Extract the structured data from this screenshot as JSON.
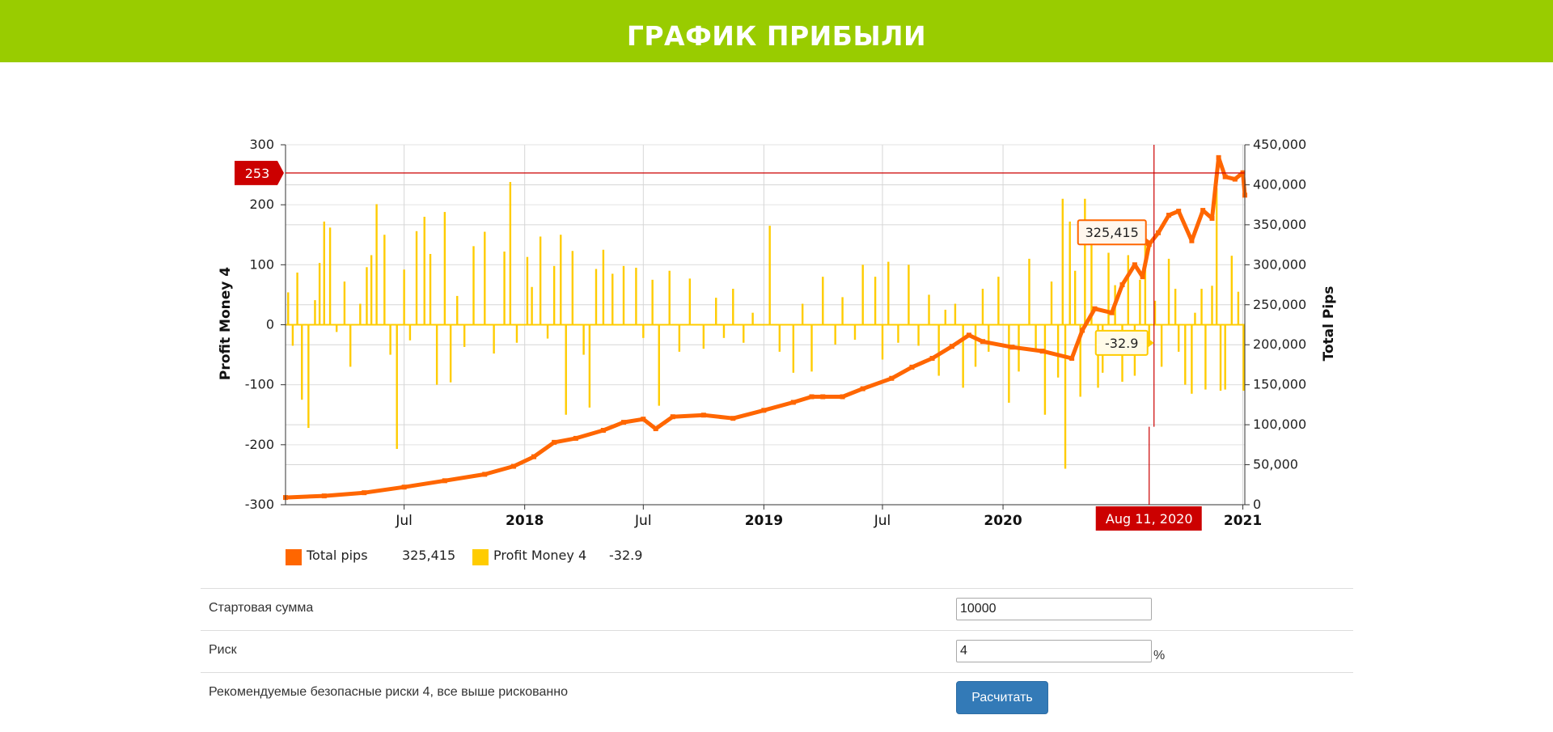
{
  "page": {
    "title": "ГРАФИК ПРИБЫЛИ"
  },
  "colors": {
    "banner": "#99cc00",
    "total_pips": "#ff6600",
    "profit": "#ffcc00",
    "crosshair": "#cc0000",
    "button": "#337ab7"
  },
  "chart_data": {
    "type": "bar+line",
    "y_left": {
      "label": "Profit Money 4",
      "range": [
        -300,
        300
      ],
      "ticks": [
        -300,
        -200,
        -100,
        0,
        100,
        200,
        300
      ]
    },
    "y_right": {
      "label": "Total Pips",
      "range": [
        0,
        450000
      ],
      "ticks": [
        "0",
        "50,000",
        "100,000",
        "150,000",
        "200,000",
        "250,000",
        "300,000",
        "350,000",
        "400,000",
        "450,000"
      ]
    },
    "x_axis": {
      "range": [
        "2017-01-01",
        "2021-01-04"
      ],
      "ticks": [
        {
          "date": "2017-07-01",
          "label": "Jul",
          "bold": false
        },
        {
          "date": "2018-01-01",
          "label": "2018",
          "bold": true
        },
        {
          "date": "2018-07-01",
          "label": "Jul",
          "bold": false
        },
        {
          "date": "2019-01-01",
          "label": "2019",
          "bold": true
        },
        {
          "date": "2019-07-01",
          "label": "Jul",
          "bold": false
        },
        {
          "date": "2020-01-01",
          "label": "2020",
          "bold": true
        },
        {
          "date": "2021-01-01",
          "label": "2021",
          "bold": true
        }
      ]
    },
    "crosshair": {
      "x_label": "Aug 11, 2020",
      "y_label": "253",
      "y_value": 253,
      "date": "2020-08-11"
    },
    "tooltips": {
      "total_pips": "325,415",
      "profit": "-32.9"
    },
    "series": [
      {
        "name": "Total pips",
        "type": "line",
        "axis": "right",
        "points": [
          [
            "2017-01-01",
            9000
          ],
          [
            "2017-03-01",
            11000
          ],
          [
            "2017-05-01",
            15000
          ],
          [
            "2017-07-01",
            22000
          ],
          [
            "2017-09-01",
            30000
          ],
          [
            "2017-11-01",
            38000
          ],
          [
            "2017-12-15",
            48000
          ],
          [
            "2018-01-15",
            60000
          ],
          [
            "2018-02-15",
            78000
          ],
          [
            "2018-03-20",
            83000
          ],
          [
            "2018-05-01",
            93000
          ],
          [
            "2018-06-01",
            103000
          ],
          [
            "2018-07-01",
            107000
          ],
          [
            "2018-07-20",
            95000
          ],
          [
            "2018-08-15",
            110000
          ],
          [
            "2018-10-01",
            112000
          ],
          [
            "2018-11-15",
            108000
          ],
          [
            "2019-01-01",
            118000
          ],
          [
            "2019-02-15",
            128000
          ],
          [
            "2019-03-15",
            135000
          ],
          [
            "2019-04-01",
            135000
          ],
          [
            "2019-05-01",
            135000
          ],
          [
            "2019-06-01",
            145000
          ],
          [
            "2019-07-15",
            158000
          ],
          [
            "2019-08-15",
            172000
          ],
          [
            "2019-09-15",
            183000
          ],
          [
            "2019-10-15",
            198000
          ],
          [
            "2019-11-10",
            212000
          ],
          [
            "2019-12-01",
            204000
          ],
          [
            "2020-01-15",
            197000
          ],
          [
            "2020-03-01",
            192000
          ],
          [
            "2020-04-15",
            183000
          ],
          [
            "2020-05-01",
            218000
          ],
          [
            "2020-05-20",
            245000
          ],
          [
            "2020-06-15",
            240000
          ],
          [
            "2020-07-01",
            275000
          ],
          [
            "2020-07-20",
            300000
          ],
          [
            "2020-08-01",
            285000
          ],
          [
            "2020-08-11",
            325415
          ],
          [
            "2020-08-25",
            340000
          ],
          [
            "2020-09-10",
            362000
          ],
          [
            "2020-09-25",
            367000
          ],
          [
            "2020-10-15",
            330000
          ],
          [
            "2020-11-01",
            368000
          ],
          [
            "2020-11-15",
            358000
          ],
          [
            "2020-11-25",
            434000
          ],
          [
            "2020-12-05",
            410000
          ],
          [
            "2020-12-20",
            407000
          ],
          [
            "2021-01-01",
            415000
          ],
          [
            "2021-01-04",
            387000
          ]
        ]
      },
      {
        "name": "Profit Money 4",
        "type": "bar",
        "axis": "left",
        "points": [
          [
            "2017-01-05",
            54
          ],
          [
            "2017-01-12",
            -35
          ],
          [
            "2017-01-19",
            87
          ],
          [
            "2017-01-26",
            -125
          ],
          [
            "2017-02-05",
            -172
          ],
          [
            "2017-02-15",
            41
          ],
          [
            "2017-02-22",
            103
          ],
          [
            "2017-03-01",
            172
          ],
          [
            "2017-03-10",
            162
          ],
          [
            "2017-03-20",
            -12
          ],
          [
            "2017-04-01",
            72
          ],
          [
            "2017-04-10",
            -70
          ],
          [
            "2017-04-25",
            35
          ],
          [
            "2017-05-05",
            96
          ],
          [
            "2017-05-12",
            116
          ],
          [
            "2017-05-20",
            201
          ],
          [
            "2017-06-01",
            150
          ],
          [
            "2017-06-10",
            -50
          ],
          [
            "2017-06-20",
            -207
          ],
          [
            "2017-07-01",
            92
          ],
          [
            "2017-07-10",
            -26
          ],
          [
            "2017-07-20",
            156
          ],
          [
            "2017-08-01",
            180
          ],
          [
            "2017-08-10",
            118
          ],
          [
            "2017-08-20",
            -100
          ],
          [
            "2017-09-01",
            188
          ],
          [
            "2017-09-10",
            -96
          ],
          [
            "2017-09-20",
            48
          ],
          [
            "2017-10-01",
            -37
          ],
          [
            "2017-10-15",
            131
          ],
          [
            "2017-11-01",
            155
          ],
          [
            "2017-11-15",
            -48
          ],
          [
            "2017-12-01",
            122
          ],
          [
            "2017-12-10",
            238
          ],
          [
            "2017-12-20",
            -30
          ],
          [
            "2018-01-05",
            113
          ],
          [
            "2018-01-12",
            63
          ],
          [
            "2018-01-25",
            147
          ],
          [
            "2018-02-05",
            -23
          ],
          [
            "2018-02-15",
            98
          ],
          [
            "2018-02-25",
            150
          ],
          [
            "2018-03-05",
            -150
          ],
          [
            "2018-03-15",
            123
          ],
          [
            "2018-04-01",
            -50
          ],
          [
            "2018-04-10",
            -138
          ],
          [
            "2018-04-20",
            93
          ],
          [
            "2018-05-01",
            125
          ],
          [
            "2018-05-15",
            85
          ],
          [
            "2018-06-01",
            98
          ],
          [
            "2018-06-20",
            95
          ],
          [
            "2018-07-01",
            -22
          ],
          [
            "2018-07-15",
            75
          ],
          [
            "2018-07-25",
            -135
          ],
          [
            "2018-08-10",
            90
          ],
          [
            "2018-08-25",
            -45
          ],
          [
            "2018-09-10",
            77
          ],
          [
            "2018-10-01",
            -40
          ],
          [
            "2018-10-20",
            45
          ],
          [
            "2018-11-01",
            -22
          ],
          [
            "2018-11-15",
            60
          ],
          [
            "2018-12-01",
            -30
          ],
          [
            "2018-12-15",
            20
          ],
          [
            "2019-01-10",
            165
          ],
          [
            "2019-01-25",
            -45
          ],
          [
            "2019-02-15",
            -80
          ],
          [
            "2019-03-01",
            35
          ],
          [
            "2019-03-15",
            -78
          ],
          [
            "2019-04-01",
            80
          ],
          [
            "2019-04-20",
            -33
          ],
          [
            "2019-05-01",
            46
          ],
          [
            "2019-05-20",
            -25
          ],
          [
            "2019-06-01",
            100
          ],
          [
            "2019-06-20",
            80
          ],
          [
            "2019-07-01",
            -58
          ],
          [
            "2019-07-10",
            105
          ],
          [
            "2019-07-25",
            -30
          ],
          [
            "2019-08-10",
            100
          ],
          [
            "2019-08-25",
            -35
          ],
          [
            "2019-09-10",
            50
          ],
          [
            "2019-09-25",
            -85
          ],
          [
            "2019-10-05",
            25
          ],
          [
            "2019-10-20",
            35
          ],
          [
            "2019-11-01",
            -105
          ],
          [
            "2019-11-20",
            -70
          ],
          [
            "2019-12-01",
            60
          ],
          [
            "2019-12-10",
            -45
          ],
          [
            "2019-12-25",
            80
          ],
          [
            "2020-01-10",
            -130
          ],
          [
            "2020-01-25",
            -78
          ],
          [
            "2020-02-10",
            110
          ],
          [
            "2020-02-20",
            -45
          ],
          [
            "2020-03-05",
            -150
          ],
          [
            "2020-03-15",
            72
          ],
          [
            "2020-03-25",
            -88
          ],
          [
            "2020-04-01",
            210
          ],
          [
            "2020-04-05",
            -240
          ],
          [
            "2020-04-12",
            172
          ],
          [
            "2020-04-20",
            90
          ],
          [
            "2020-04-28",
            -120
          ],
          [
            "2020-05-05",
            210
          ],
          [
            "2020-05-15",
            147
          ],
          [
            "2020-05-25",
            -105
          ],
          [
            "2020-06-01",
            -80
          ],
          [
            "2020-06-10",
            120
          ],
          [
            "2020-06-20",
            66
          ],
          [
            "2020-07-01",
            -95
          ],
          [
            "2020-07-10",
            116
          ],
          [
            "2020-07-20",
            -85
          ],
          [
            "2020-07-28",
            75
          ],
          [
            "2020-08-05",
            150
          ],
          [
            "2020-08-11",
            -32.9
          ],
          [
            "2020-08-20",
            40
          ],
          [
            "2020-08-30",
            -70
          ],
          [
            "2020-09-10",
            110
          ],
          [
            "2020-09-20",
            60
          ],
          [
            "2020-09-25",
            -45
          ],
          [
            "2020-10-05",
            -100
          ],
          [
            "2020-10-15",
            -115
          ],
          [
            "2020-10-20",
            20
          ],
          [
            "2020-10-30",
            60
          ],
          [
            "2020-11-05",
            -108
          ],
          [
            "2020-11-15",
            65
          ],
          [
            "2020-11-22",
            228
          ],
          [
            "2020-11-28",
            -110
          ],
          [
            "2020-12-05",
            -108
          ],
          [
            "2020-12-15",
            115
          ],
          [
            "2020-12-25",
            55
          ],
          [
            "2021-01-02",
            -110
          ]
        ]
      }
    ],
    "legend": {
      "position": "bottom-left",
      "items": [
        {
          "name": "Total pips",
          "value": "325,415"
        },
        {
          "name": "Profit Money 4",
          "value": "-32.9"
        }
      ]
    },
    "grid": true
  },
  "form": {
    "start_label": "Стартовая сумма",
    "start_value": "10000",
    "risk_label": "Риск",
    "risk_value": "4",
    "percent_sign": "%",
    "note": "Рекомендуемые безопасные риски 4, все выше рискованно",
    "calc_button": "Расчитать"
  }
}
